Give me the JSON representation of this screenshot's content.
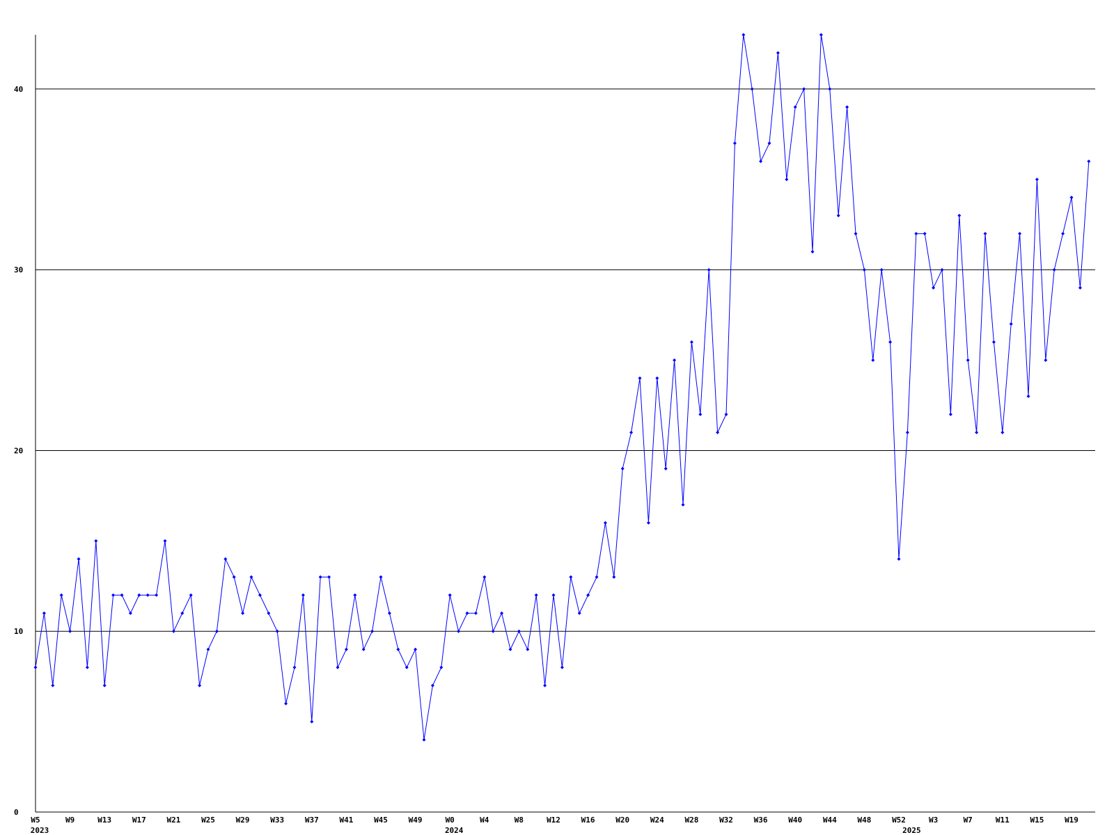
{
  "chart_data": {
    "type": "line",
    "categories": [
      "W5",
      null,
      null,
      null,
      "W9",
      null,
      null,
      null,
      "W13",
      null,
      null,
      null,
      "W17",
      null,
      null,
      null,
      "W21",
      null,
      null,
      null,
      "W25",
      null,
      null,
      null,
      "W29",
      null,
      null,
      null,
      "W33",
      null,
      null,
      null,
      "W37",
      null,
      null,
      null,
      "W41",
      null,
      null,
      null,
      "W45",
      null,
      null,
      null,
      "W49",
      null,
      null,
      null,
      "W0",
      null,
      null,
      null,
      "W4",
      null,
      null,
      null,
      "W8",
      null,
      null,
      null,
      "W12",
      null,
      null,
      null,
      "W16",
      null,
      null,
      null,
      "W20",
      null,
      null,
      null,
      "W24",
      null,
      null,
      null,
      "W28",
      null,
      null,
      null,
      "W32",
      null,
      null,
      null,
      "W36",
      null,
      null,
      null,
      "W40",
      null,
      null,
      null,
      "W44",
      null,
      null,
      null,
      "W48",
      null,
      null,
      null,
      "W52",
      null,
      null,
      null,
      "W3",
      null,
      null,
      null,
      "W7",
      null,
      null,
      null,
      "W11",
      null,
      null,
      null,
      "W15",
      null,
      null,
      null,
      "W19",
      null,
      null
    ],
    "years": [
      "2023",
      null,
      null,
      null,
      null,
      null,
      null,
      null,
      null,
      null,
      null,
      null,
      null,
      null,
      null,
      null,
      null,
      null,
      null,
      null,
      null,
      null,
      null,
      null,
      null,
      null,
      null,
      null,
      null,
      null,
      null,
      null,
      null,
      null,
      null,
      null,
      null,
      null,
      null,
      null,
      null,
      null,
      null,
      null,
      null,
      null,
      null,
      null,
      "2024",
      null,
      null,
      null,
      null,
      null,
      null,
      null,
      null,
      null,
      null,
      null,
      null,
      null,
      null,
      null,
      null,
      null,
      null,
      null,
      null,
      null,
      null,
      null,
      null,
      null,
      null,
      null,
      null,
      null,
      null,
      null,
      null,
      null,
      null,
      null,
      null,
      null,
      null,
      null,
      null,
      null,
      null,
      null,
      null,
      null,
      null,
      null,
      null,
      null,
      null,
      null,
      null,
      "2025",
      null,
      null,
      null,
      null,
      null,
      null,
      null,
      null,
      null,
      null,
      null,
      null,
      null,
      null,
      null,
      null,
      null,
      null,
      null,
      null,
      null
    ],
    "values": [
      8,
      11,
      7,
      12,
      10,
      14,
      8,
      15,
      7,
      12,
      12,
      11,
      12,
      12,
      12,
      15,
      10,
      11,
      12,
      7,
      9,
      10,
      14,
      13,
      11,
      13,
      12,
      11,
      10,
      6,
      8,
      12,
      5,
      13,
      13,
      8,
      9,
      12,
      9,
      10,
      13,
      11,
      9,
      8,
      9,
      4,
      7,
      8,
      12,
      10,
      11,
      11,
      13,
      10,
      11,
      9,
      10,
      9,
      12,
      7,
      12,
      8,
      13,
      11,
      12,
      13,
      16,
      13,
      19,
      21,
      24,
      16,
      24,
      19,
      25,
      17,
      26,
      22,
      30,
      21,
      22,
      37,
      43,
      40,
      36,
      37,
      42,
      35,
      39,
      40,
      31,
      43,
      40,
      33,
      39,
      32,
      30,
      25,
      30,
      26,
      14,
      21,
      32,
      32,
      29,
      30,
      22,
      33,
      25,
      21,
      32,
      26,
      21,
      27,
      32,
      23,
      35,
      25,
      30,
      32,
      34,
      29,
      36
    ],
    "color": "#0000ff",
    "ylim": [
      0,
      43
    ],
    "yticks": [
      0,
      10,
      20,
      30,
      40
    ],
    "grid": true
  }
}
